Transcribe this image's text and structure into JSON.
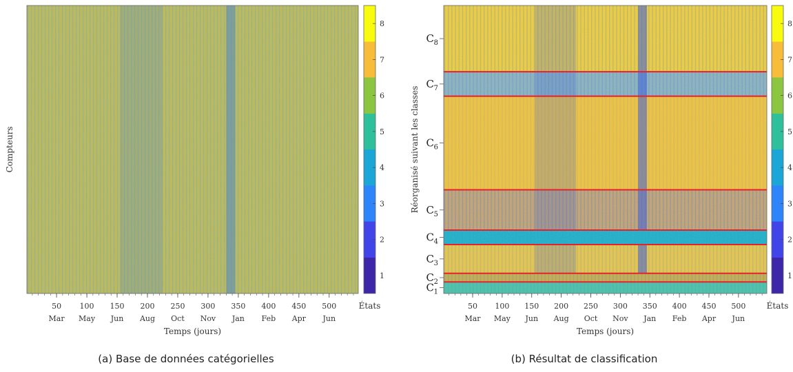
{
  "chart_data": [
    {
      "type": "heatmap",
      "caption": "(a) Base de données catégorielles",
      "xlabel": "Temps (jours)",
      "ylabel": "Compteurs",
      "x_ticks": [
        50,
        100,
        150,
        200,
        250,
        300,
        350,
        400,
        450,
        500
      ],
      "month_labels": [
        "Mar",
        "May",
        "Jun",
        "Aug",
        "Oct",
        "Nov",
        "Jan",
        "Feb",
        "Apr",
        "Jun"
      ],
      "xlim": [
        1,
        548
      ],
      "colorbar": {
        "label": "États",
        "ticks": [
          1,
          2,
          3,
          4,
          5,
          6,
          7,
          8
        ],
        "range": [
          0.5,
          8.5
        ]
      },
      "state_colors": [
        "#3e26a8",
        "#4145e8",
        "#2e85fa",
        "#1aa6d7",
        "#2ebf9b",
        "#8cc640",
        "#f7bc3a",
        "#f9fb0e"
      ]
    },
    {
      "type": "heatmap",
      "caption": "(b) Résultat de classification",
      "xlabel": "Temps (jours)",
      "ylabel": "Réorganisé suivant les classes",
      "x_ticks": [
        50,
        100,
        150,
        200,
        250,
        300,
        350,
        400,
        450,
        500
      ],
      "month_labels": [
        "Mar",
        "May",
        "Jun",
        "Aug",
        "Oct",
        "Nov",
        "Jan",
        "Feb",
        "Apr",
        "Jun"
      ],
      "xlim": [
        1,
        548
      ],
      "colorbar": {
        "label": "États",
        "ticks": [
          1,
          2,
          3,
          4,
          5,
          6,
          7,
          8
        ],
        "range": [
          0.5,
          8.5
        ]
      },
      "classes": [
        {
          "name": "C",
          "sub": "8",
          "fraction": 0.23
        },
        {
          "name": "C",
          "sub": "7",
          "fraction": 0.085
        },
        {
          "name": "C",
          "sub": "6",
          "fraction": 0.325
        },
        {
          "name": "C",
          "sub": "5",
          "fraction": 0.14
        },
        {
          "name": "C",
          "sub": "4",
          "fraction": 0.05
        },
        {
          "name": "C",
          "sub": "3",
          "fraction": 0.1
        },
        {
          "name": "C",
          "sub": "2",
          "fraction": 0.03
        },
        {
          "name": "C",
          "sub": "1",
          "fraction": 0.04
        }
      ],
      "separator_color": "#e8202a"
    }
  ]
}
